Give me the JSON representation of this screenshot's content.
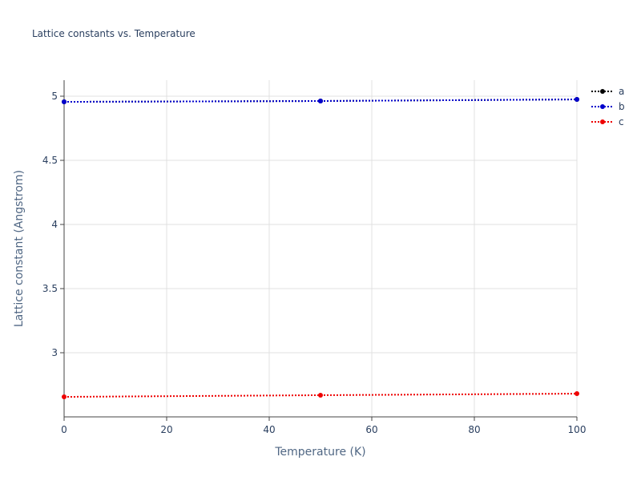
{
  "chart_data": {
    "type": "line",
    "title": "Lattice constants vs. Temperature",
    "x_label": "Temperature (K)",
    "y_label": "Lattice constant (Angstrom)",
    "x": [
      0,
      50,
      100
    ],
    "series": [
      {
        "name": "a",
        "color": "#000000",
        "values": [
          4.956,
          4.9625,
          4.975
        ]
      },
      {
        "name": "b",
        "color": "#0000cc",
        "values": [
          4.956,
          4.9625,
          4.975
        ]
      },
      {
        "name": "c",
        "color": "#ee0000",
        "values": [
          2.656,
          2.669,
          2.681
        ]
      }
    ],
    "xlim": [
      0,
      100
    ],
    "xticks": [
      0,
      20,
      40,
      60,
      80,
      100
    ],
    "ylim": [
      2.5,
      5.125
    ],
    "yticks": [
      3,
      3.5,
      4,
      4.5,
      5
    ],
    "grid": true
  }
}
